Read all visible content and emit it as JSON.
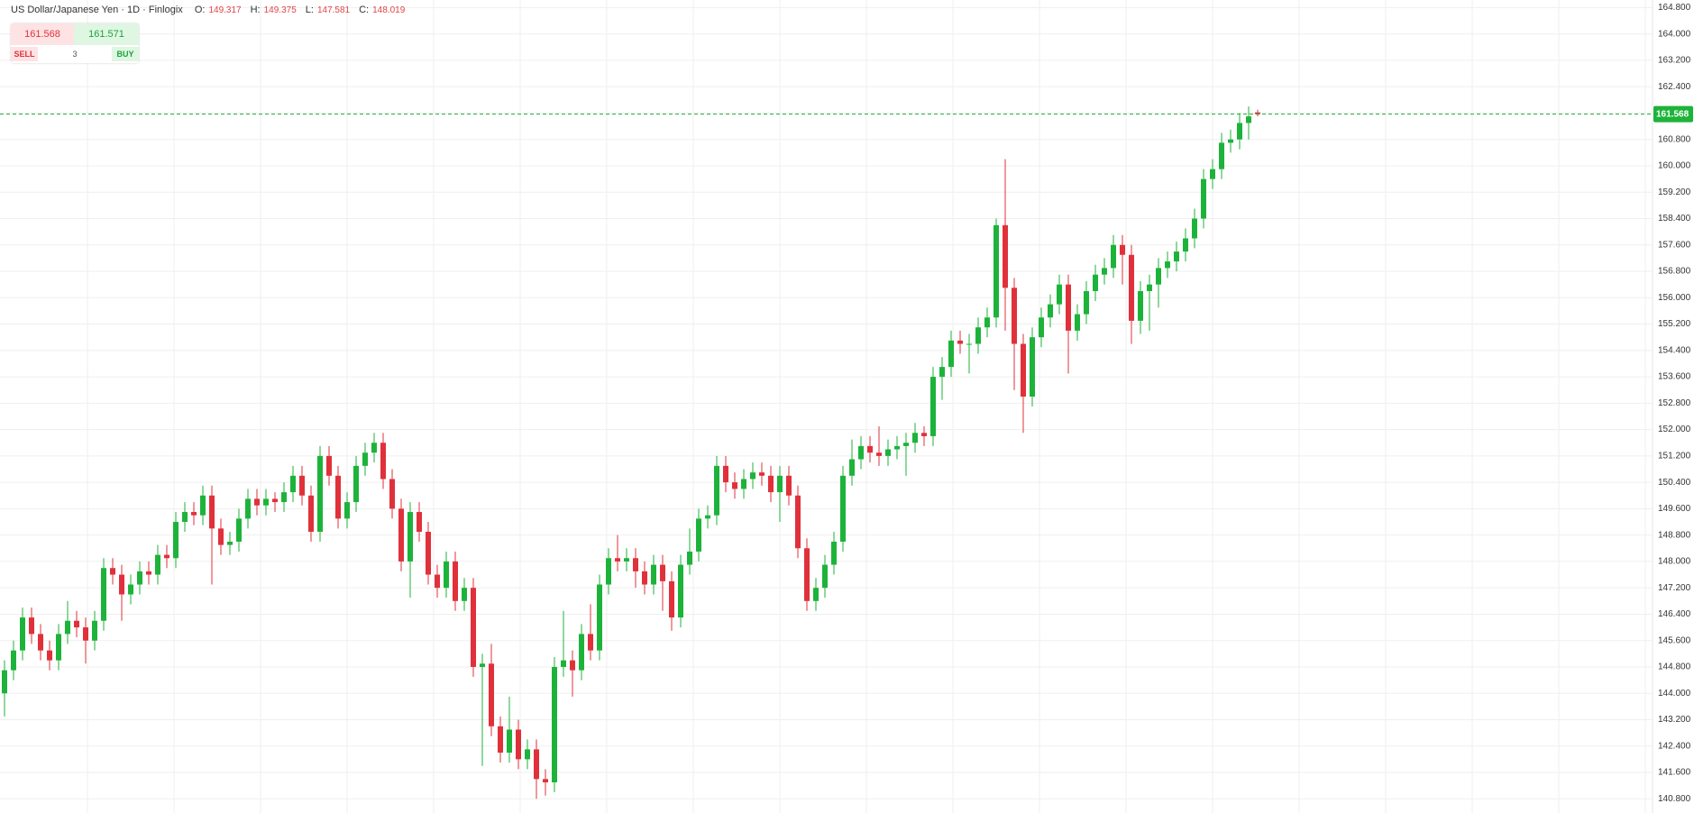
{
  "header": {
    "title": "US Dollar/Japanese Yen · 1D · Finlogix",
    "ohlc": [
      {
        "label": "O:",
        "value": 149.317
      },
      {
        "label": "H:",
        "value": 149.375
      },
      {
        "label": "L:",
        "value": 147.581
      },
      {
        "label": "C:",
        "value": 148.019
      }
    ]
  },
  "trade_panel": {
    "sell_price": 161.568,
    "buy_price": 161.571,
    "sell_label": "SELL",
    "quantity": 3,
    "buy_label": "BUY"
  },
  "chart_data": {
    "type": "candlestick",
    "up_color": "#1db33a",
    "down_color": "#e0313b",
    "grid": true,
    "last_price": {
      "value": 161.568,
      "label": "161.568"
    },
    "last_price_color": "#1db33a",
    "ylim": [
      140.37,
      165.03
    ],
    "yticks": [
      {
        "value": 140.8,
        "label": "140.800"
      },
      {
        "value": 141.6,
        "label": "141.600"
      },
      {
        "value": 142.4,
        "label": "142.400"
      },
      {
        "value": 143.2,
        "label": "143.200"
      },
      {
        "value": 144,
        "label": "144.000"
      },
      {
        "value": 144.8,
        "label": "144.800"
      },
      {
        "value": 145.6,
        "label": "145.600"
      },
      {
        "value": 146.4,
        "label": "146.400"
      },
      {
        "value": 147.2,
        "label": "147.200"
      },
      {
        "value": 148,
        "label": "148.000"
      },
      {
        "value": 148.8,
        "label": "148.800"
      },
      {
        "value": 149.6,
        "label": "149.600"
      },
      {
        "value": 150.4,
        "label": "150.400"
      },
      {
        "value": 151.2,
        "label": "151.200"
      },
      {
        "value": 152,
        "label": "152.000"
      },
      {
        "value": 152.8,
        "label": "152.800"
      },
      {
        "value": 153.6,
        "label": "153.600"
      },
      {
        "value": 154.4,
        "label": "154.400"
      },
      {
        "value": 155.2,
        "label": "155.200"
      },
      {
        "value": 156,
        "label": "156.000"
      },
      {
        "value": 156.8,
        "label": "156.800"
      },
      {
        "value": 157.6,
        "label": "157.600"
      },
      {
        "value": 158.4,
        "label": "158.400"
      },
      {
        "value": 159.2,
        "label": "159.200"
      },
      {
        "value": 160,
        "label": "160.000"
      },
      {
        "value": 160.8,
        "label": "160.800"
      },
      {
        "value": 161.6,
        "label": "161.600"
      },
      {
        "value": 162.4,
        "label": "162.400"
      },
      {
        "value": 163.2,
        "label": "163.200"
      },
      {
        "value": 164,
        "label": "164.000"
      },
      {
        "value": 164.8,
        "label": "164.800"
      }
    ],
    "open": [
      144.0,
      144.7,
      145.3,
      146.3,
      145.8,
      145.3,
      145.0,
      145.8,
      146.2,
      146.0,
      145.6,
      146.2,
      147.8,
      147.6,
      147.0,
      147.3,
      147.7,
      147.6,
      148.2,
      148.1,
      149.2,
      149.5,
      149.4,
      150.0,
      149.0,
      148.5,
      148.6,
      149.3,
      149.9,
      149.7,
      149.9,
      149.8,
      150.1,
      150.6,
      150.0,
      148.9,
      151.2,
      150.6,
      149.3,
      149.8,
      150.9,
      151.3,
      151.6,
      150.5,
      149.6,
      148.0,
      149.5,
      148.9,
      147.6,
      147.2,
      148.0,
      146.8,
      147.2,
      144.8,
      144.9,
      143.0,
      142.2,
      142.9,
      142.0,
      142.3,
      141.4,
      141.3,
      144.8,
      145.0,
      144.7,
      145.8,
      145.3,
      147.3,
      148.1,
      148.0,
      148.1,
      147.7,
      147.3,
      147.9,
      147.4,
      146.3,
      147.9,
      148.3,
      149.3,
      149.4,
      150.9,
      150.4,
      150.2,
      150.5,
      150.7,
      150.6,
      150.1,
      150.6,
      150.0,
      148.4,
      146.8,
      147.2,
      147.9,
      148.6,
      150.6,
      151.1,
      151.5,
      151.3,
      151.2,
      151.4,
      151.5,
      151.6,
      151.9,
      151.8,
      153.6,
      153.9,
      154.7,
      154.6,
      154.6,
      155.1,
      155.4,
      158.2,
      156.3,
      154.6,
      153.0,
      154.8,
      155.4,
      155.8,
      156.4,
      155.0,
      155.5,
      156.2,
      156.7,
      156.9,
      157.6,
      157.3,
      155.3,
      156.2,
      156.4,
      156.9,
      157.1,
      157.4,
      157.8,
      158.4,
      159.6,
      159.9,
      160.7,
      160.8,
      161.3,
      161.62
    ],
    "high": [
      145.0,
      145.6,
      146.6,
      146.6,
      146.1,
      145.6,
      146.1,
      146.8,
      146.5,
      146.3,
      146.5,
      148.1,
      148.1,
      147.9,
      147.6,
      148.0,
      148.0,
      148.5,
      148.5,
      149.5,
      149.8,
      149.8,
      150.3,
      150.3,
      149.3,
      148.9,
      149.6,
      150.2,
      150.2,
      150.2,
      150.1,
      150.4,
      150.9,
      150.9,
      150.3,
      151.5,
      151.5,
      150.9,
      150.1,
      151.2,
      151.6,
      151.9,
      151.9,
      150.8,
      149.9,
      149.8,
      149.8,
      149.2,
      147.9,
      148.3,
      148.3,
      147.5,
      147.5,
      145.2,
      145.5,
      143.3,
      143.9,
      143.2,
      142.6,
      142.6,
      141.7,
      145.1,
      146.5,
      145.3,
      146.1,
      146.7,
      147.6,
      148.4,
      148.8,
      148.4,
      148.4,
      148.0,
      148.2,
      148.2,
      147.7,
      148.2,
      149.0,
      149.6,
      149.7,
      151.2,
      151.2,
      150.7,
      150.8,
      151.0,
      151.0,
      150.9,
      150.9,
      150.9,
      150.3,
      148.7,
      147.5,
      148.2,
      148.9,
      150.9,
      151.7,
      151.8,
      151.8,
      152.1,
      151.7,
      151.8,
      151.9,
      152.2,
      152.1,
      153.9,
      154.2,
      155.0,
      155.0,
      154.9,
      155.4,
      155.7,
      158.4,
      160.2,
      156.6,
      154.9,
      155.1,
      155.7,
      156.1,
      156.7,
      156.7,
      155.8,
      156.5,
      157.0,
      157.2,
      157.9,
      157.9,
      157.6,
      156.5,
      156.7,
      157.2,
      157.4,
      157.7,
      158.1,
      158.7,
      159.9,
      160.2,
      161.0,
      161.1,
      161.6,
      161.8,
      161.7
    ],
    "low": [
      143.3,
      144.4,
      145.0,
      145.5,
      145.0,
      144.7,
      144.7,
      145.5,
      145.7,
      144.9,
      145.3,
      145.9,
      147.3,
      146.2,
      146.7,
      147.0,
      147.3,
      147.3,
      147.8,
      147.8,
      148.9,
      149.1,
      149.1,
      147.3,
      148.2,
      148.2,
      148.3,
      149.0,
      149.4,
      149.4,
      149.5,
      149.5,
      149.8,
      149.7,
      148.6,
      148.6,
      150.3,
      149.0,
      149.0,
      149.5,
      150.6,
      151.0,
      150.2,
      149.3,
      147.7,
      146.9,
      148.6,
      147.3,
      146.9,
      146.9,
      146.5,
      146.5,
      144.5,
      141.8,
      142.7,
      141.9,
      141.9,
      141.7,
      141.7,
      140.8,
      140.9,
      141.0,
      144.5,
      143.9,
      144.4,
      145.0,
      145.0,
      147.0,
      147.7,
      147.7,
      147.2,
      147.0,
      147.0,
      146.5,
      145.9,
      146.0,
      147.6,
      148.0,
      149.0,
      149.1,
      150.1,
      149.9,
      149.9,
      150.2,
      150.3,
      149.8,
      149.2,
      149.7,
      148.1,
      146.5,
      146.5,
      146.9,
      147.6,
      148.3,
      150.3,
      150.8,
      151.0,
      150.9,
      150.9,
      151.1,
      150.6,
      151.3,
      151.5,
      151.5,
      152.9,
      153.6,
      154.3,
      153.7,
      154.3,
      154.8,
      155.1,
      155.0,
      153.2,
      151.9,
      152.7,
      154.5,
      155.1,
      155.5,
      153.7,
      154.7,
      155.2,
      155.9,
      156.4,
      156.6,
      156.4,
      154.6,
      154.9,
      155.0,
      155.7,
      156.6,
      156.8,
      157.1,
      157.5,
      158.1,
      159.3,
      159.6,
      160.4,
      160.5,
      160.8,
      161.5
    ],
    "close": [
      144.7,
      145.3,
      146.3,
      145.8,
      145.3,
      145.0,
      145.8,
      146.2,
      146.0,
      145.6,
      146.2,
      147.8,
      147.6,
      147.0,
      147.3,
      147.7,
      147.6,
      148.2,
      148.1,
      149.2,
      149.5,
      149.4,
      150.0,
      149.0,
      148.5,
      148.6,
      149.3,
      149.9,
      149.7,
      149.9,
      149.8,
      150.1,
      150.6,
      150.0,
      148.9,
      151.2,
      150.6,
      149.3,
      149.8,
      150.9,
      151.3,
      151.6,
      150.5,
      149.6,
      148.0,
      149.5,
      148.9,
      147.6,
      147.2,
      148.0,
      146.8,
      147.2,
      144.8,
      144.9,
      143.0,
      142.2,
      142.9,
      142.0,
      142.3,
      141.4,
      141.3,
      144.8,
      145.0,
      144.7,
      145.8,
      145.3,
      147.3,
      148.1,
      148.0,
      148.1,
      147.7,
      147.3,
      147.9,
      147.4,
      146.3,
      147.9,
      148.3,
      149.3,
      149.4,
      150.9,
      150.4,
      150.2,
      150.5,
      150.7,
      150.6,
      150.1,
      150.6,
      150.0,
      148.4,
      146.8,
      147.2,
      147.9,
      148.6,
      150.6,
      151.1,
      151.5,
      151.3,
      151.2,
      151.4,
      151.5,
      151.6,
      151.9,
      151.8,
      153.6,
      153.9,
      154.7,
      154.6,
      154.6,
      155.1,
      155.4,
      158.2,
      156.3,
      154.6,
      153.0,
      154.8,
      155.4,
      155.8,
      156.4,
      155.0,
      155.5,
      156.2,
      156.7,
      156.9,
      157.6,
      157.3,
      155.3,
      156.2,
      156.4,
      156.9,
      157.1,
      157.4,
      157.8,
      158.4,
      159.6,
      159.9,
      160.7,
      160.8,
      161.3,
      161.5,
      161.57
    ]
  }
}
